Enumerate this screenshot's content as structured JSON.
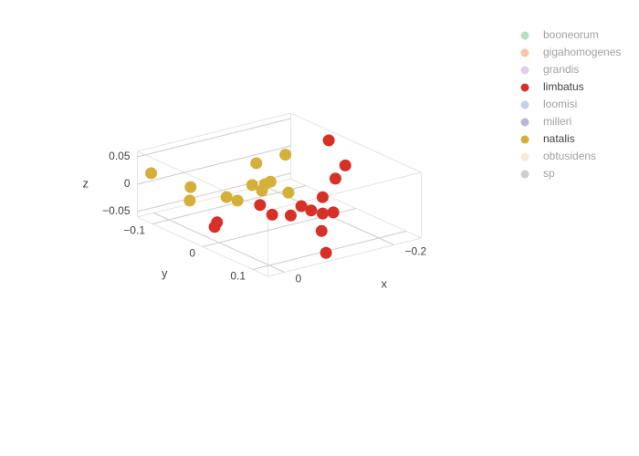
{
  "chart_data": {
    "type": "scatter3d",
    "xlim": [
      -0.25,
      0.03
    ],
    "ylim": [
      -0.13,
      0.13
    ],
    "zlim": [
      -0.06,
      0.06
    ],
    "xticks": [
      {
        "value": -0.2,
        "label": "−0.2"
      },
      0
    ],
    "yticks": [
      {
        "value": -0.1,
        "label": "−0.1"
      },
      0,
      0.1
    ],
    "zticks": [
      {
        "value": -0.05,
        "label": "−0.05"
      },
      0,
      0.05
    ],
    "xlabel": "x",
    "ylabel": "y",
    "zlabel": "z",
    "series": [
      {
        "name": "booneorum",
        "color": "#74c07a",
        "visible": "legendonly"
      },
      {
        "name": "gigahomogenes",
        "color": "#f08a5d",
        "visible": "legendonly"
      },
      {
        "name": "grandis",
        "color": "#c3a5d0",
        "visible": "legendonly"
      },
      {
        "name": "limbatus",
        "color": "#d73027",
        "visible": true,
        "x": [
          -0.237,
          -0.224,
          -0.195,
          -0.156,
          -0.119,
          -0.125,
          -0.135,
          -0.149,
          -0.111,
          -0.088,
          -0.072,
          -0.074,
          -0.095,
          0.001,
          0.01
        ],
        "y": [
          -0.04,
          0.007,
          0.019,
          0.036,
          0.034,
          0.047,
          0.059,
          0.065,
          0.083,
          0.117,
          0.003,
          0.025,
          0.039,
          -0.003,
          0.002
        ],
        "z": [
          0.051,
          0.028,
          0.016,
          -0.001,
          -0.009,
          -0.013,
          -0.016,
          -0.015,
          -0.032,
          -0.052,
          -0.008,
          -0.017,
          -0.018,
          -0.024,
          -0.028
        ]
      },
      {
        "name": "loomisi",
        "color": "#7fa8d4",
        "visible": "legendonly"
      },
      {
        "name": "milleri",
        "color": "#7d6bae",
        "visible": "legendonly"
      },
      {
        "name": "natalis",
        "color": "#d4b03a",
        "visible": true,
        "x": [
          0.015,
          -0.014,
          0.005,
          -0.122,
          -0.167,
          -0.089,
          -0.115,
          -0.105,
          -0.093,
          -0.122,
          -0.043,
          -0.051
        ],
        "y": [
          -0.119,
          -0.072,
          -0.053,
          -0.059,
          -0.05,
          -0.031,
          -0.023,
          -0.023,
          -0.016,
          0.005,
          -0.032,
          -0.019
        ],
        "z": [
          0.021,
          0.008,
          -0.004,
          0.03,
          0.038,
          0.01,
          0.013,
          0.011,
          0.005,
          0.003,
          -0.001,
          -0.004
        ]
      },
      {
        "name": "obtusidens",
        "color": "#f3d9a8",
        "visible": "legendonly"
      },
      {
        "name": "sp",
        "color": "#9e9e9e",
        "visible": "legendonly"
      }
    ]
  }
}
